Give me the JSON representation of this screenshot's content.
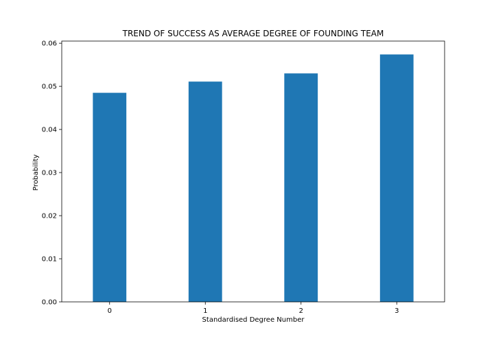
{
  "chart_data": {
    "type": "bar",
    "title": "TREND OF SUCCESS AS AVERAGE DEGREE OF FOUNDING TEAM",
    "xlabel": "Standardised Degree Number",
    "ylabel": "Probability",
    "categories": [
      "0",
      "1",
      "2",
      "3"
    ],
    "values": [
      0.0485,
      0.0511,
      0.053,
      0.0574
    ],
    "ylim": [
      0,
      0.0605
    ],
    "xlim": [
      -0.5,
      3.5
    ],
    "yticks": [
      0.0,
      0.01,
      0.02,
      0.03,
      0.04,
      0.05,
      0.06
    ],
    "ytick_labels": [
      "0.00",
      "0.01",
      "0.02",
      "0.03",
      "0.04",
      "0.05",
      "0.06"
    ],
    "bar_color": "#1f77b4",
    "grid": false,
    "legend": "none"
  }
}
